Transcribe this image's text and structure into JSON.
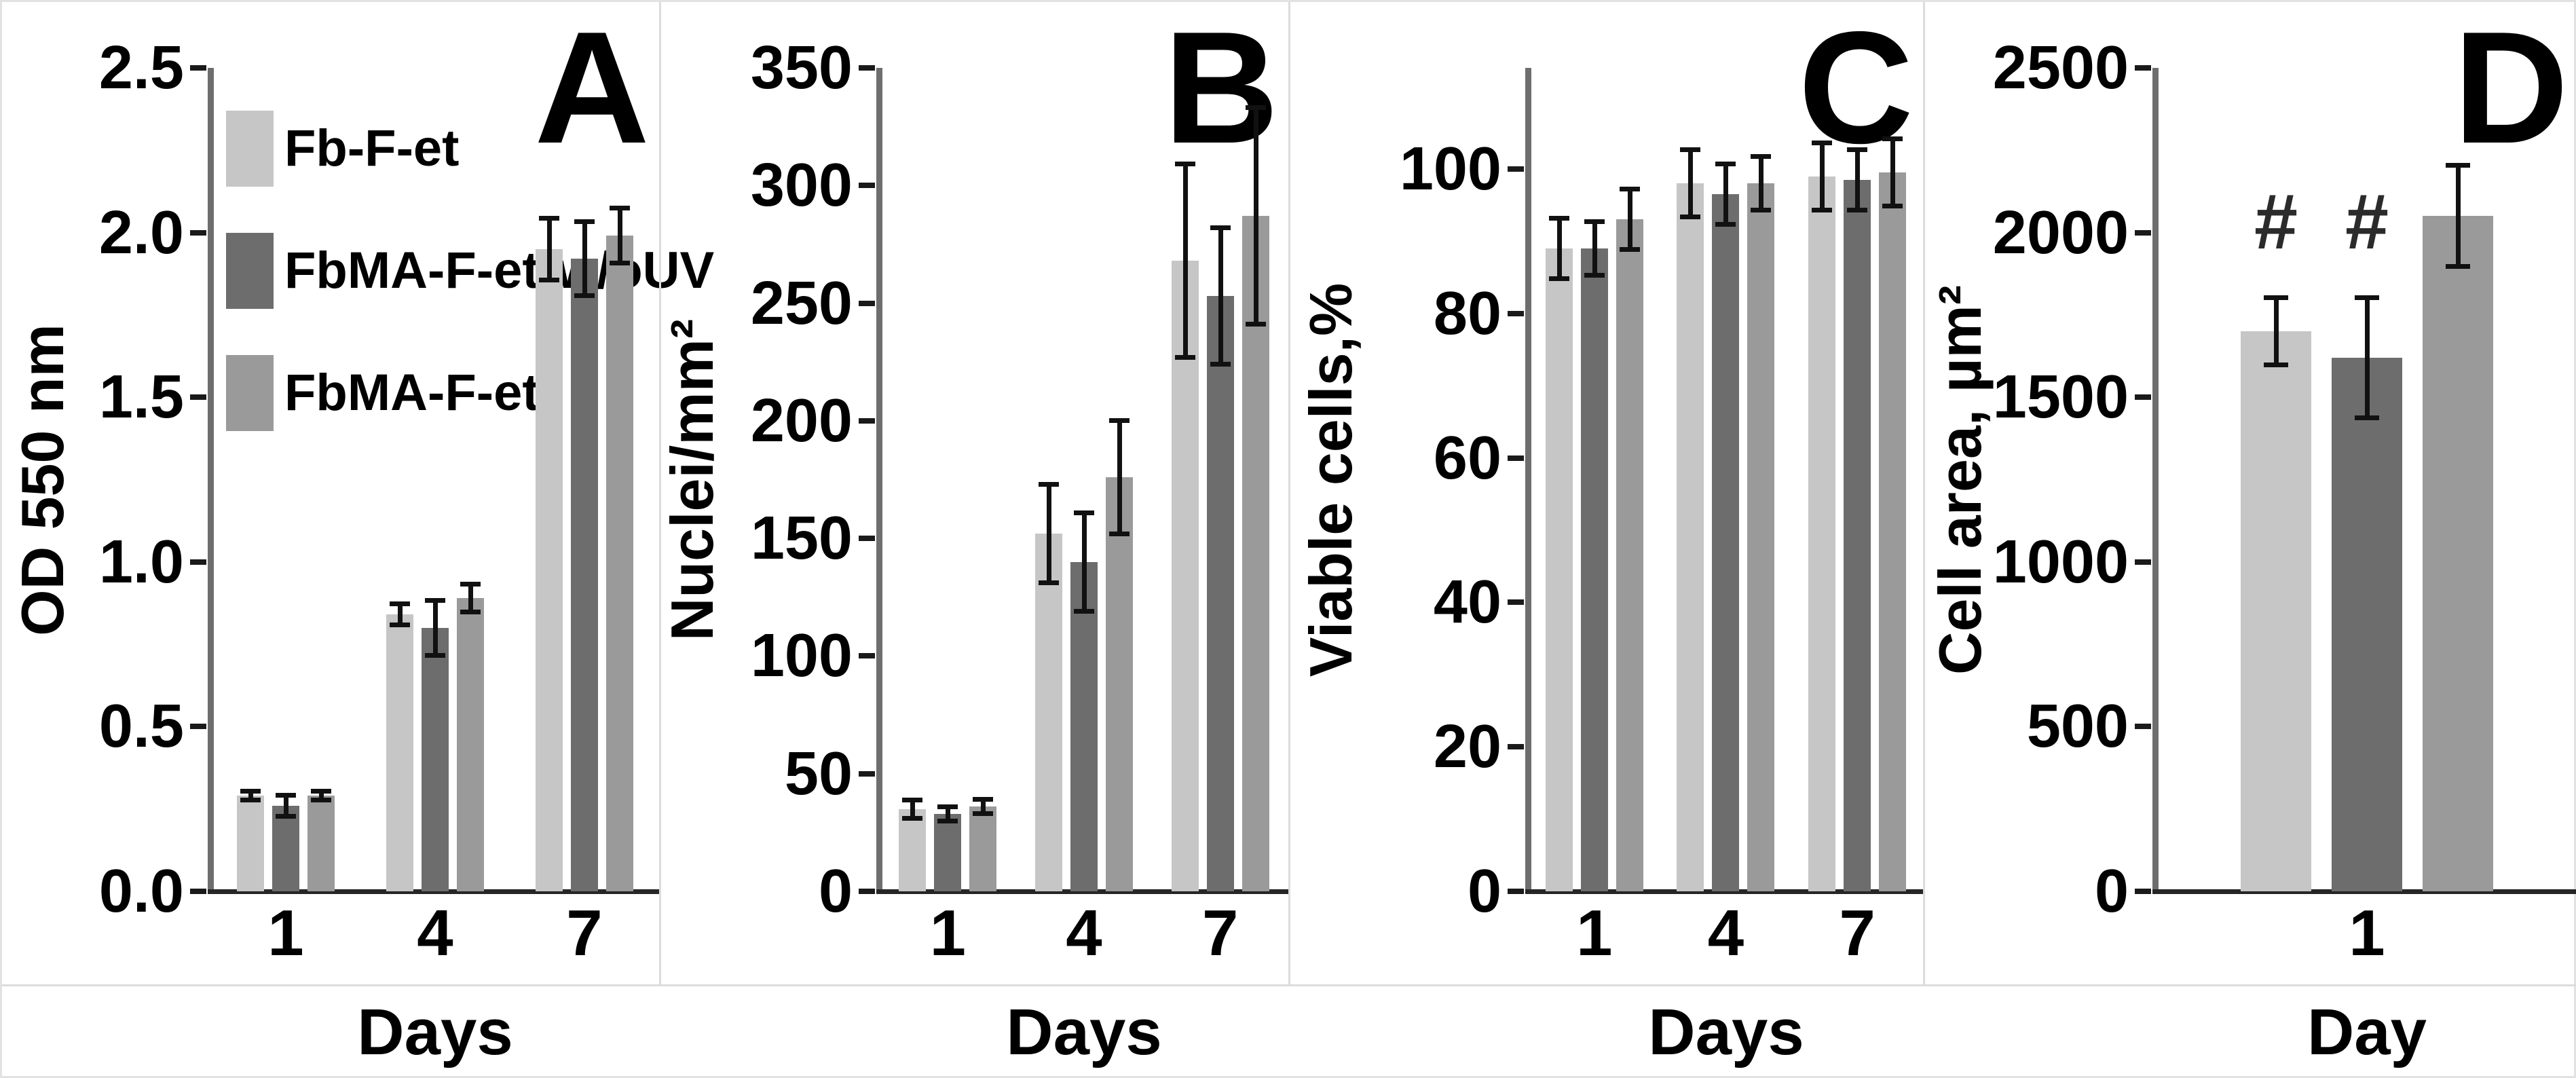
{
  "figure": {
    "description": "Four-panel grayscale bar chart figure comparing fibrin scaffold samples over culture days",
    "separator_color": "#dcdcdc",
    "axis_line_color": "#6e6e6e",
    "baseline_color": "#262626",
    "error_bar_color": "#111111"
  },
  "legend": {
    "items": [
      {
        "label": "Fb-F-et",
        "color": "#c6c6c6"
      },
      {
        "label": "FbMA-F-et-w/oUV",
        "color": "#6d6d6d"
      },
      {
        "label": "FbMA-F-et",
        "color": "#9a9a9a"
      }
    ]
  },
  "chart_data": [
    {
      "type": "bar",
      "panel_label": "A",
      "ylabel": "OD 550 nm",
      "xlabel": "Days",
      "categories": [
        "1",
        "4",
        "7"
      ],
      "ylim": [
        0,
        2.5
      ],
      "grid": false,
      "legend_position": "top-left-inside",
      "yticks": [
        {
          "label": "0.0",
          "v": 0.0
        },
        {
          "label": "0.5",
          "v": 0.5
        },
        {
          "label": "1.0",
          "v": 1.0
        },
        {
          "label": "1.5",
          "v": 1.5
        },
        {
          "label": "2.0",
          "v": 2.0
        },
        {
          "label": "2.5",
          "v": 2.5
        }
      ],
      "series": [
        {
          "name": "Fb-F-et",
          "color": "#c6c6c6",
          "values": [
            0.29,
            0.84,
            1.95
          ],
          "errors": [
            0.02,
            0.04,
            0.1
          ]
        },
        {
          "name": "FbMA-F-et-w/oUV",
          "color": "#6d6d6d",
          "values": [
            0.26,
            0.8,
            1.92
          ],
          "errors": [
            0.04,
            0.09,
            0.12
          ]
        },
        {
          "name": "FbMA-F-et",
          "color": "#9a9a9a",
          "values": [
            0.29,
            0.89,
            1.99
          ],
          "errors": [
            0.02,
            0.05,
            0.09
          ]
        }
      ],
      "annotations": []
    },
    {
      "type": "bar",
      "panel_label": "B",
      "ylabel": "Nuclei/mm²",
      "xlabel": "Days",
      "categories": [
        "1",
        "4",
        "7"
      ],
      "ylim": [
        0,
        350
      ],
      "grid": false,
      "yticks": [
        {
          "label": "0",
          "v": 0
        },
        {
          "label": "50",
          "v": 50
        },
        {
          "label": "100",
          "v": 100
        },
        {
          "label": "150",
          "v": 150
        },
        {
          "label": "200",
          "v": 200
        },
        {
          "label": "250",
          "v": 250
        },
        {
          "label": "300",
          "v": 300
        },
        {
          "label": "350",
          "v": 350
        }
      ],
      "series": [
        {
          "name": "Fb-F-et",
          "color": "#c6c6c6",
          "values": [
            35,
            152,
            268
          ],
          "errors": [
            5,
            22,
            42
          ]
        },
        {
          "name": "FbMA-F-et-w/oUV",
          "color": "#6d6d6d",
          "values": [
            33,
            140,
            253
          ],
          "errors": [
            4,
            22,
            30
          ]
        },
        {
          "name": "FbMA-F-et",
          "color": "#9a9a9a",
          "values": [
            36,
            176,
            287
          ],
          "errors": [
            4,
            25,
            47
          ]
        }
      ],
      "annotations": []
    },
    {
      "type": "bar",
      "panel_label": "C",
      "ylabel": "Viable cells,%",
      "xlabel": "Days",
      "categories": [
        "1",
        "4",
        "7"
      ],
      "ylim": [
        0,
        114
      ],
      "grid": false,
      "yticks": [
        {
          "label": "0",
          "v": 0
        },
        {
          "label": "20",
          "v": 20
        },
        {
          "label": "40",
          "v": 40
        },
        {
          "label": "60",
          "v": 60
        },
        {
          "label": "80",
          "v": 80
        },
        {
          "label": "100",
          "v": 100
        }
      ],
      "series": [
        {
          "name": "Fb-F-et",
          "color": "#c6c6c6",
          "values": [
            89,
            98,
            99
          ],
          "errors": [
            4.5,
            5,
            5
          ]
        },
        {
          "name": "FbMA-F-et-w/oUV",
          "color": "#6d6d6d",
          "values": [
            89,
            96.5,
            98.5
          ],
          "errors": [
            4,
            4.5,
            4.5
          ]
        },
        {
          "name": "FbMA-F-et",
          "color": "#9a9a9a",
          "values": [
            93,
            98,
            99.5
          ],
          "errors": [
            4.5,
            4,
            5
          ]
        }
      ],
      "annotations": []
    },
    {
      "type": "bar",
      "panel_label": "D",
      "ylabel": "Cell area, µm²",
      "xlabel": "Day",
      "categories": [
        "1"
      ],
      "ylim": [
        0,
        2500
      ],
      "grid": false,
      "yticks": [
        {
          "label": "0",
          "v": 0
        },
        {
          "label": "500",
          "v": 500
        },
        {
          "label": "1000",
          "v": 1000
        },
        {
          "label": "1500",
          "v": 1500
        },
        {
          "label": "2000",
          "v": 2000
        },
        {
          "label": "2500",
          "v": 2500
        }
      ],
      "series": [
        {
          "name": "Fb-F-et",
          "color": "#c6c6c6",
          "values": [
            1700
          ],
          "errors": [
            110
          ]
        },
        {
          "name": "FbMA-F-et-w/oUV",
          "color": "#6d6d6d",
          "values": [
            1620
          ],
          "errors": [
            190
          ]
        },
        {
          "name": "FbMA-F-et",
          "color": "#9a9a9a",
          "values": [
            2050
          ],
          "errors": [
            160
          ]
        }
      ],
      "annotations": [
        {
          "text": "#",
          "series": 0,
          "category": 0
        },
        {
          "text": "#",
          "series": 1,
          "category": 0
        }
      ]
    }
  ]
}
